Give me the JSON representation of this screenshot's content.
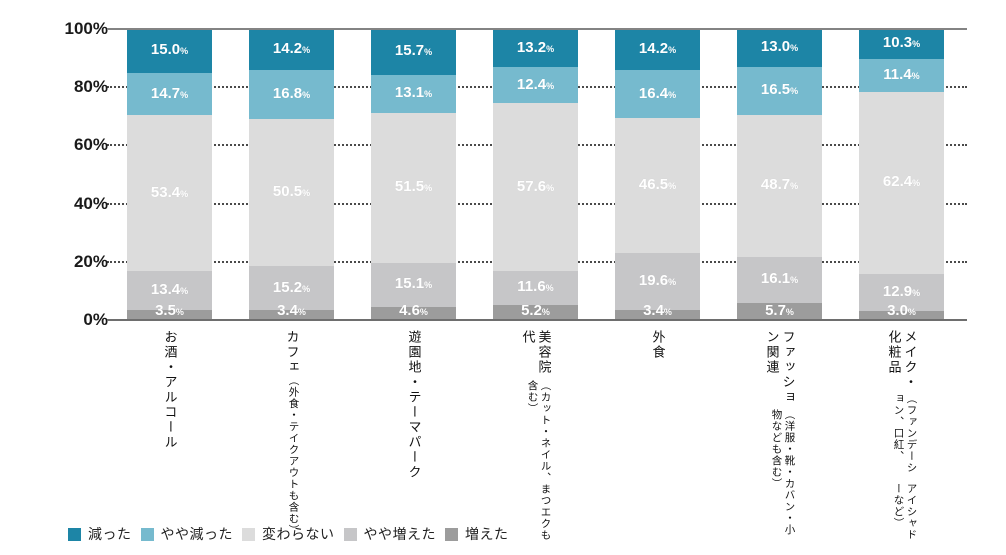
{
  "chart_data": {
    "type": "bar",
    "stacked": true,
    "percent_total": true,
    "unit": "%",
    "title": "",
    "xlabel": "",
    "ylabel": "",
    "ylim": [
      0,
      100
    ],
    "y_ticks": [
      100,
      80,
      60,
      40,
      20,
      0
    ],
    "grid": "dotted horizontal at 20/40/60/80",
    "legend_position": "bottom-left",
    "categories": [
      {
        "lines": [
          "お酒・アルコール"
        ]
      },
      {
        "lines": [
          "カフェ",
          "（外食・テイクアウトも含む）"
        ]
      },
      {
        "lines": [
          "遊園地・テーマパーク"
        ]
      },
      {
        "lines": [
          "美容院代",
          "（カット・ネイル、まつエクも含む）"
        ]
      },
      {
        "lines": [
          "外食"
        ]
      },
      {
        "lines": [
          "ファッション関連",
          "（洋服・靴・カバン・小物なども含む）"
        ]
      },
      {
        "lines": [
          "メイク・化粧品",
          "（ファンデーション、口紅、",
          "アイシャドーなど）"
        ]
      }
    ],
    "series": [
      {
        "name": "減った",
        "color": "#1d85a6",
        "values": [
          15.0,
          14.2,
          15.7,
          13.2,
          14.2,
          13.0,
          10.3
        ]
      },
      {
        "name": "やや減った",
        "color": "#76bace",
        "values": [
          14.7,
          16.8,
          13.1,
          12.4,
          16.4,
          16.5,
          11.4
        ]
      },
      {
        "name": "変わらない",
        "color": "#dcdcdc",
        "values": [
          53.4,
          50.5,
          51.5,
          57.6,
          46.5,
          48.7,
          62.4
        ]
      },
      {
        "name": "やや増えた",
        "color": "#c6c6c8",
        "values": [
          13.4,
          15.2,
          15.1,
          11.6,
          19.6,
          16.1,
          12.9
        ]
      },
      {
        "name": "増えた",
        "color": "#9c9c9c",
        "values": [
          3.5,
          3.4,
          4.6,
          5.2,
          3.4,
          5.7,
          3.0
        ]
      }
    ]
  }
}
